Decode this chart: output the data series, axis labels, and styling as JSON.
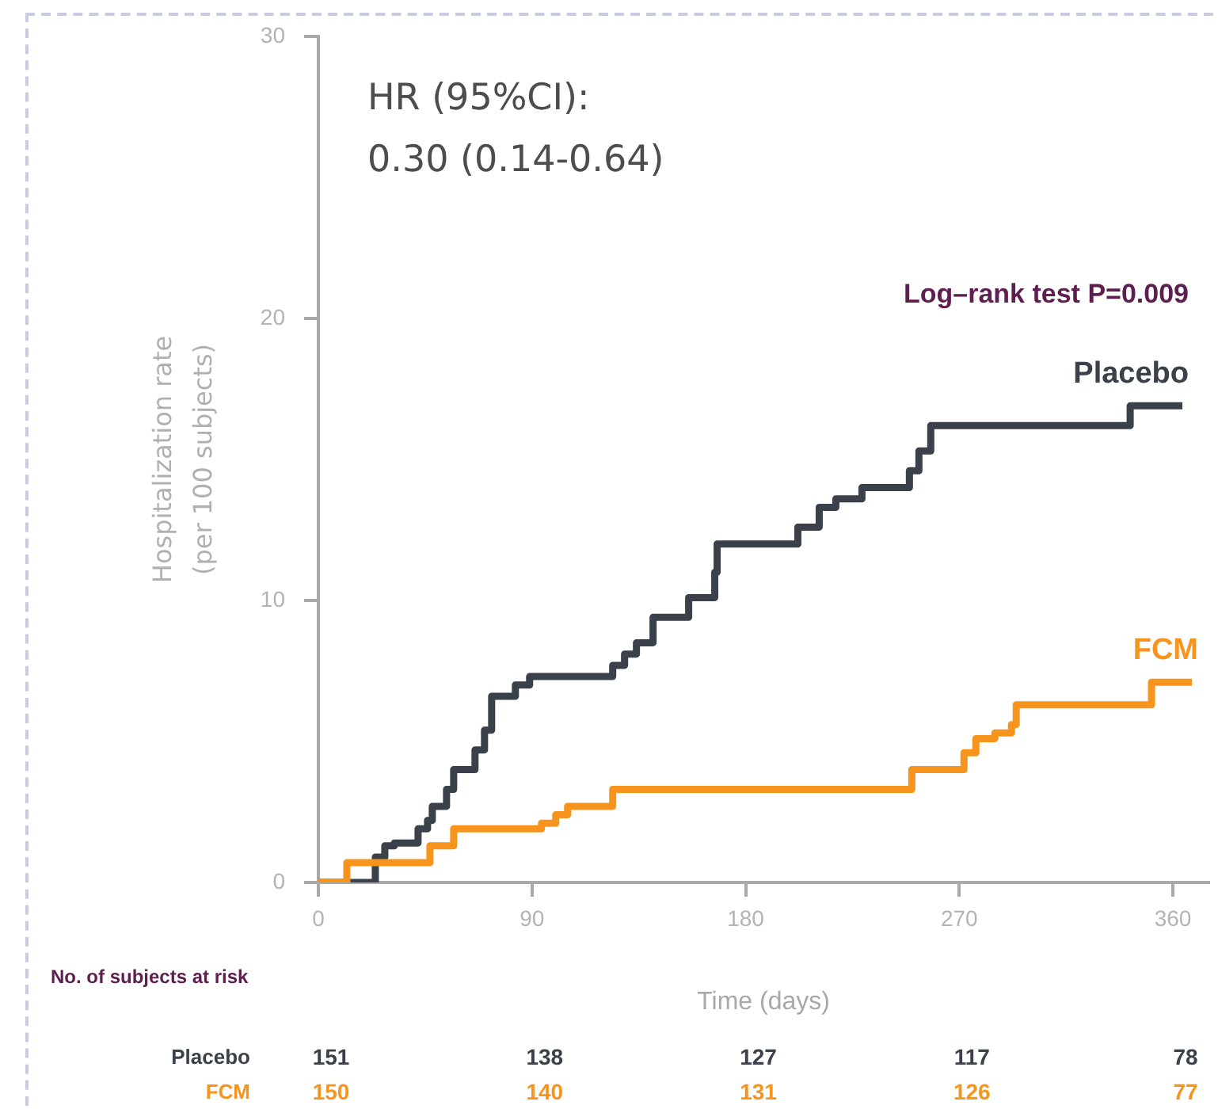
{
  "chart_data": {
    "type": "step",
    "xlabel": "Time (days)",
    "ylabel": "Hospitalization rate\n(per 100 subjects)",
    "xlim": [
      0,
      375
    ],
    "xticks": [
      0,
      90,
      180,
      270,
      360
    ],
    "ylim": [
      0,
      30
    ],
    "yticks": [
      0,
      10,
      20,
      30
    ],
    "grid": false,
    "series": [
      {
        "name": "Placebo",
        "color": "#3b414b",
        "x": [
          0,
          24,
          28,
          32,
          42,
          46,
          48,
          54,
          57,
          66,
          70,
          73,
          83,
          89,
          124,
          129,
          134,
          141,
          156,
          167,
          168,
          202,
          211,
          218,
          229,
          249,
          253,
          258,
          342,
          364
        ],
        "values": [
          0,
          0.9,
          1.3,
          1.4,
          1.9,
          2.2,
          2.7,
          3.3,
          4.0,
          4.7,
          5.4,
          6.6,
          7.0,
          7.3,
          7.7,
          8.1,
          8.5,
          9.4,
          10.1,
          11.0,
          12.0,
          12.6,
          13.3,
          13.6,
          14.0,
          14.6,
          15.3,
          16.2,
          16.9,
          16.9
        ]
      },
      {
        "name": "FCM",
        "color": "#f7941d",
        "x": [
          0,
          12,
          47,
          57,
          94,
          100,
          105,
          124,
          250,
          272,
          277,
          285,
          292,
          294,
          351,
          368
        ],
        "values": [
          0,
          0.7,
          1.3,
          1.9,
          2.1,
          2.4,
          2.7,
          3.3,
          4.0,
          4.6,
          5.1,
          5.3,
          5.6,
          6.3,
          7.1,
          7.1
        ]
      }
    ],
    "annotations": [
      "HR (95%CI):\n0.30 (0.14-0.64)",
      "Log–rank test P=0.009",
      "No. of subjects at risk",
      "Placebo",
      "151",
      "138",
      "127",
      "117",
      "78",
      "FCM",
      "150",
      "140",
      "131",
      "126",
      "77"
    ]
  }
}
